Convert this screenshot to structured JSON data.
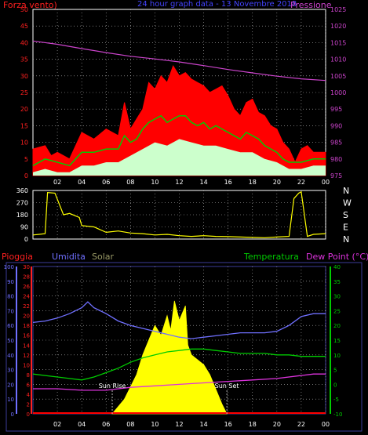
{
  "colors": {
    "wind_avg": "#ff0000",
    "wind_gust_mid": "#00cc00",
    "wind_low": "#ccffcc",
    "pressure": "#cc44cc",
    "direction": "#ffff00",
    "humidity": "#7070ff",
    "temperature": "#00cc00",
    "dewpoint": "#dd33dd",
    "solar": "#ffff00",
    "rain": "#ff0000",
    "axis_white": "#ffffff",
    "frame_blue": "#3b3b99",
    "grid": "#bbbbbb"
  },
  "chart_data": [
    {
      "type": "line",
      "id": "wind-pressure",
      "title": "24 hour graph data - 13 Novembre 2018",
      "left_label": "Forza vento)",
      "right_label": "Pressione",
      "x_ticks": [
        "02",
        "04",
        "06",
        "08",
        "10",
        "12",
        "14",
        "16",
        "18",
        "20",
        "22",
        "00"
      ],
      "y_left_ticks": [
        0,
        5,
        10,
        15,
        20,
        25,
        30,
        35,
        40,
        45,
        50
      ],
      "y_left_lim": [
        0,
        50
      ],
      "y_right_ticks": [
        975,
        980,
        985,
        990,
        995,
        1000,
        1005,
        1010,
        1015,
        1020,
        1025
      ],
      "y_right_lim": [
        975,
        1025
      ],
      "grid": true,
      "series": [
        {
          "key": "wind_max",
          "points": [
            [
              0,
              8
            ],
            [
              1,
              9
            ],
            [
              1.5,
              6
            ],
            [
              2,
              7
            ],
            [
              3,
              5
            ],
            [
              4,
              13
            ],
            [
              5,
              11
            ],
            [
              6,
              14
            ],
            [
              7,
              12
            ],
            [
              7.5,
              22
            ],
            [
              8,
              14
            ],
            [
              8.5,
              17
            ],
            [
              9,
              20
            ],
            [
              9.5,
              28
            ],
            [
              10,
              26
            ],
            [
              10.5,
              30
            ],
            [
              11,
              28
            ],
            [
              11.5,
              33
            ],
            [
              12,
              30
            ],
            [
              12.5,
              31
            ],
            [
              13,
              29
            ],
            [
              13.5,
              28
            ],
            [
              14,
              27
            ],
            [
              14.5,
              25
            ],
            [
              15,
              26
            ],
            [
              15.5,
              27
            ],
            [
              16,
              24
            ],
            [
              16.5,
              20
            ],
            [
              17,
              18
            ],
            [
              17.5,
              22
            ],
            [
              18,
              23
            ],
            [
              18.5,
              19
            ],
            [
              19,
              18
            ],
            [
              19.5,
              15
            ],
            [
              20,
              14
            ],
            [
              20.5,
              10
            ],
            [
              21,
              8
            ],
            [
              21.5,
              4
            ],
            [
              22,
              8
            ],
            [
              22.5,
              9
            ],
            [
              23,
              7
            ],
            [
              24,
              7
            ]
          ]
        },
        {
          "key": "wind_avg",
          "points": [
            [
              0,
              3
            ],
            [
              1,
              5
            ],
            [
              2,
              4
            ],
            [
              3,
              3
            ],
            [
              4,
              7
            ],
            [
              5,
              7
            ],
            [
              6,
              8
            ],
            [
              7,
              8
            ],
            [
              7.5,
              12
            ],
            [
              8,
              10
            ],
            [
              8.5,
              11
            ],
            [
              9,
              14
            ],
            [
              9.5,
              16
            ],
            [
              10,
              17
            ],
            [
              10.5,
              18
            ],
            [
              11,
              16
            ],
            [
              11.5,
              17
            ],
            [
              12,
              18
            ],
            [
              12.5,
              18
            ],
            [
              13,
              16
            ],
            [
              13.5,
              15
            ],
            [
              14,
              16
            ],
            [
              14.5,
              14
            ],
            [
              15,
              15
            ],
            [
              15.5,
              14
            ],
            [
              16,
              13
            ],
            [
              16.5,
              12
            ],
            [
              17,
              11
            ],
            [
              17.5,
              13
            ],
            [
              18,
              12
            ],
            [
              18.5,
              11
            ],
            [
              19,
              9
            ],
            [
              19.5,
              8
            ],
            [
              20,
              7
            ],
            [
              20.5,
              5
            ],
            [
              21,
              4
            ],
            [
              22,
              4
            ],
            [
              23,
              5
            ],
            [
              24,
              5
            ]
          ]
        },
        {
          "key": "wind_low",
          "points": [
            [
              0,
              1
            ],
            [
              1,
              2
            ],
            [
              2,
              1
            ],
            [
              3,
              1
            ],
            [
              4,
              3
            ],
            [
              5,
              3
            ],
            [
              6,
              4
            ],
            [
              7,
              4
            ],
            [
              8,
              6
            ],
            [
              9,
              8
            ],
            [
              10,
              10
            ],
            [
              11,
              9
            ],
            [
              12,
              11
            ],
            [
              13,
              10
            ],
            [
              14,
              9
            ],
            [
              15,
              9
            ],
            [
              16,
              8
            ],
            [
              17,
              7
            ],
            [
              18,
              7
            ],
            [
              19,
              5
            ],
            [
              20,
              4
            ],
            [
              21,
              2
            ],
            [
              22,
              2
            ],
            [
              23,
              3
            ],
            [
              24,
              3
            ]
          ]
        },
        {
          "key": "pressure",
          "points": [
            [
              0,
              1015.5
            ],
            [
              2,
              1014.5
            ],
            [
              4,
              1013.2
            ],
            [
              6,
              1012
            ],
            [
              8,
              1010.9
            ],
            [
              10,
              1010.1
            ],
            [
              12,
              1009.2
            ],
            [
              14,
              1008.1
            ],
            [
              16,
              1006.9
            ],
            [
              18,
              1005.9
            ],
            [
              20,
              1004.9
            ],
            [
              22,
              1004.1
            ],
            [
              24,
              1003.6
            ]
          ]
        }
      ]
    },
    {
      "type": "line",
      "id": "wind-direction",
      "x_ticks": [
        "02",
        "04",
        "06",
        "08",
        "10",
        "12",
        "14",
        "16",
        "18",
        "20",
        "22",
        "00"
      ],
      "y_ticks": [
        0,
        90,
        180,
        270,
        360
      ],
      "y_lim": [
        0,
        360
      ],
      "compass_labels": [
        "N",
        "W",
        "S",
        "E",
        "N"
      ],
      "series": [
        {
          "key": "direction",
          "points": [
            [
              0,
              30
            ],
            [
              0.5,
              35
            ],
            [
              1,
              40
            ],
            [
              1.2,
              345
            ],
            [
              1.8,
              340
            ],
            [
              2.5,
              180
            ],
            [
              3,
              190
            ],
            [
              3.8,
              160
            ],
            [
              4,
              100
            ],
            [
              5,
              90
            ],
            [
              6,
              50
            ],
            [
              7,
              60
            ],
            [
              8,
              45
            ],
            [
              9,
              40
            ],
            [
              10,
              30
            ],
            [
              11,
              35
            ],
            [
              12,
              25
            ],
            [
              13,
              20
            ],
            [
              14,
              25
            ],
            [
              15,
              20
            ],
            [
              16,
              18
            ],
            [
              17,
              15
            ],
            [
              18,
              12
            ],
            [
              19,
              10
            ],
            [
              20,
              15
            ],
            [
              21,
              20
            ],
            [
              21.4,
              300
            ],
            [
              21.8,
              340
            ],
            [
              22,
              350
            ],
            [
              22.5,
              20
            ],
            [
              23,
              35
            ],
            [
              24,
              40
            ]
          ]
        }
      ]
    },
    {
      "type": "line",
      "id": "humidity-temp-solar",
      "labels": {
        "rain": "Pioggia",
        "humidity": "Umidita",
        "solar": "Solar",
        "temperature": "Temperatura",
        "dewpoint": "Dew Point (°C)",
        "sun_rise": "Sun Rise",
        "sun_set": "Sun Set"
      },
      "x_ticks": [
        "02",
        "04",
        "06",
        "08",
        "10",
        "12",
        "14",
        "16",
        "18",
        "20",
        "22",
        "00"
      ],
      "y_hum_ticks": [
        0,
        10,
        20,
        30,
        40,
        50,
        60,
        70,
        80,
        90,
        100
      ],
      "y_rain_ticks": [
        0,
        2,
        4,
        6,
        8,
        10,
        12,
        14,
        16,
        18,
        20,
        22,
        24,
        26,
        28,
        30
      ],
      "y_temp_ticks": [
        -10,
        -5,
        0,
        5,
        10,
        15,
        20,
        25,
        30,
        35,
        40
      ],
      "y_temp_lim": [
        -10,
        40
      ],
      "grid": true,
      "sun_rise_hour": 6.5,
      "sun_set_hour": 15.9,
      "series": [
        {
          "key": "humidity",
          "points": [
            [
              0,
              62
            ],
            [
              1,
              63
            ],
            [
              2,
              65
            ],
            [
              3,
              68
            ],
            [
              4,
              72
            ],
            [
              4.5,
              76
            ],
            [
              5,
              72
            ],
            [
              6,
              68
            ],
            [
              7,
              63
            ],
            [
              8,
              60
            ],
            [
              9,
              58
            ],
            [
              10,
              56
            ],
            [
              11,
              54
            ],
            [
              12,
              52
            ],
            [
              13,
              51
            ],
            [
              14,
              52
            ],
            [
              15,
              53
            ],
            [
              16,
              54
            ],
            [
              17,
              55
            ],
            [
              18,
              55
            ],
            [
              19,
              55
            ],
            [
              20,
              56
            ],
            [
              21,
              60
            ],
            [
              22,
              66
            ],
            [
              23,
              68
            ],
            [
              24,
              68
            ]
          ]
        },
        {
          "key": "temperature",
          "points": [
            [
              0,
              3.5
            ],
            [
              1,
              3
            ],
            [
              2,
              2.5
            ],
            [
              3,
              2
            ],
            [
              4,
              1.5
            ],
            [
              5,
              2.5
            ],
            [
              6,
              4
            ],
            [
              7,
              5.5
            ],
            [
              8,
              7.5
            ],
            [
              9,
              9
            ],
            [
              10,
              10
            ],
            [
              11,
              11
            ],
            [
              12,
              11.5
            ],
            [
              13,
              12
            ],
            [
              14,
              12
            ],
            [
              15,
              11.5
            ],
            [
              16,
              11
            ],
            [
              17,
              10.5
            ],
            [
              18,
              10.5
            ],
            [
              19,
              10.5
            ],
            [
              20,
              10
            ],
            [
              21,
              10
            ],
            [
              22,
              9.5
            ],
            [
              23,
              9.5
            ],
            [
              24,
              9.5
            ]
          ]
        },
        {
          "key": "dewpoint",
          "points": [
            [
              0,
              -1.5
            ],
            [
              2,
              -1.5
            ],
            [
              4,
              -2
            ],
            [
              6,
              -2
            ],
            [
              8,
              -1
            ],
            [
              10,
              -0.5
            ],
            [
              12,
              0
            ],
            [
              14,
              0.5
            ],
            [
              16,
              1
            ],
            [
              18,
              1.5
            ],
            [
              20,
              2
            ],
            [
              22,
              3
            ],
            [
              23,
              3.5
            ],
            [
              24,
              3.5
            ]
          ]
        },
        {
          "key": "solar",
          "points": [
            [
              6.5,
              0
            ],
            [
              7.5,
              3
            ],
            [
              8.5,
              8
            ],
            [
              9,
              12
            ],
            [
              9.5,
              15
            ],
            [
              10,
              18
            ],
            [
              10.5,
              16
            ],
            [
              11,
              20
            ],
            [
              11.3,
              17
            ],
            [
              11.6,
              23
            ],
            [
              12,
              19
            ],
            [
              12.5,
              22
            ],
            [
              12.7,
              14
            ],
            [
              13,
              12
            ],
            [
              13.5,
              11
            ],
            [
              14,
              10
            ],
            [
              14.5,
              8
            ],
            [
              15,
              5
            ],
            [
              15.5,
              2
            ],
            [
              15.9,
              0
            ]
          ]
        }
      ]
    }
  ]
}
